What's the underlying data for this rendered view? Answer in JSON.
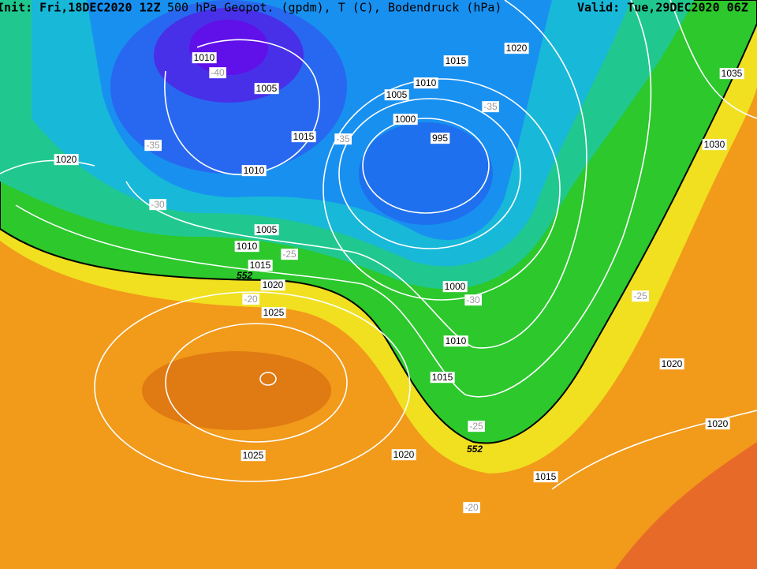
{
  "header": {
    "init": "Init: Fri,18DEC2020 12Z",
    "product": "500 hPa Geopot. (gpdm), T (C), Bodendruck (hPa)",
    "valid": "Valid: Tue,29DEC2020 06Z"
  },
  "labels": [
    "1010",
    "-40",
    "1005",
    "1015",
    "1020",
    "1010",
    "1005",
    "-35",
    "1035",
    "1000",
    "995",
    "1015",
    "-35",
    "-35",
    "1030",
    "1020",
    "1010",
    "-30",
    "1005",
    "1010",
    "-25",
    "1015",
    "552",
    "1020",
    "-20",
    "1025",
    "1000",
    "-30",
    "-25",
    "1010",
    "1020",
    "1015",
    "-25",
    "1020",
    "552",
    "1025",
    "1020",
    "1015",
    "-20"
  ]
}
